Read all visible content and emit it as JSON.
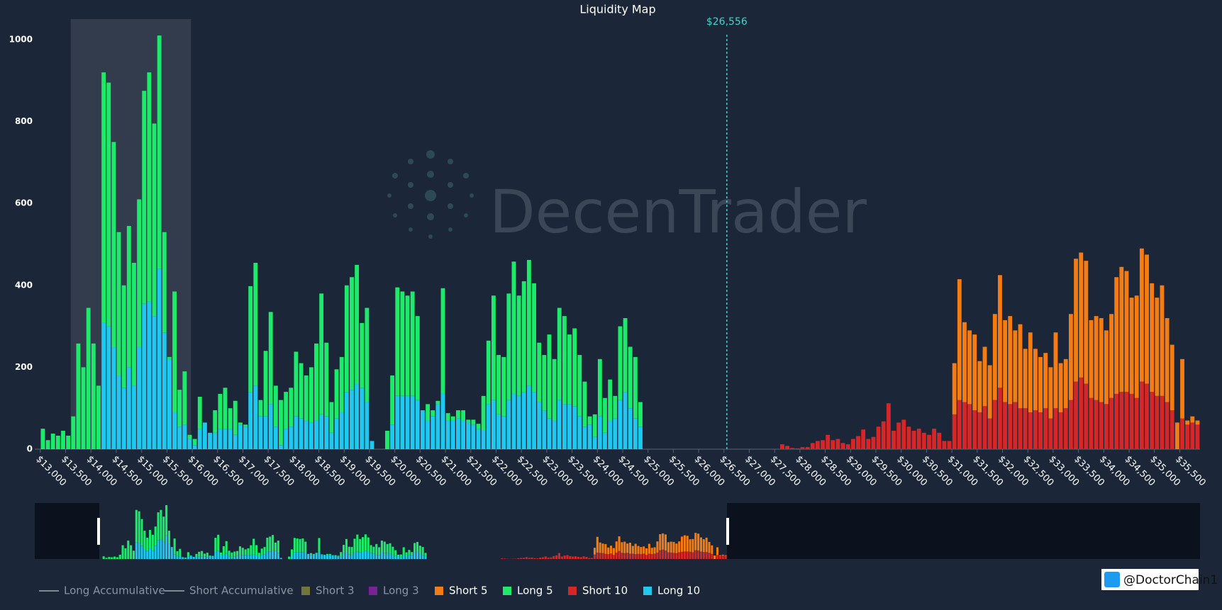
{
  "chart_data": {
    "type": "bar",
    "title": "Liquidity Map",
    "watermark": "DecenTrader",
    "credit": "@DoctorChain1",
    "current_price": {
      "value": 26556,
      "label": "$26,556"
    },
    "highlight_range": [
      13600,
      15975
    ],
    "xlim": [
      12890,
      35900
    ],
    "ylim": [
      0,
      1050
    ],
    "yticks": [
      0,
      200,
      400,
      600,
      800,
      1000
    ],
    "xticks": [
      {
        "value": 13000,
        "label": "$13,000"
      },
      {
        "value": 13500,
        "label": "$13,500"
      },
      {
        "value": 14000,
        "label": "$14,000"
      },
      {
        "value": 14500,
        "label": "$14,500"
      },
      {
        "value": 15000,
        "label": "$15,000"
      },
      {
        "value": 15500,
        "label": "$15,500"
      },
      {
        "value": 16000,
        "label": "$16,000"
      },
      {
        "value": 16500,
        "label": "$16,500"
      },
      {
        "value": 17000,
        "label": "$17,000"
      },
      {
        "value": 17500,
        "label": "$17,500"
      },
      {
        "value": 18000,
        "label": "$18,000"
      },
      {
        "value": 18500,
        "label": "$18,500"
      },
      {
        "value": 19000,
        "label": "$19,000"
      },
      {
        "value": 19500,
        "label": "$19,500"
      },
      {
        "value": 20000,
        "label": "$20,000"
      },
      {
        "value": 20500,
        "label": "$20,500"
      },
      {
        "value": 21000,
        "label": "$21,000"
      },
      {
        "value": 21500,
        "label": "$21,500"
      },
      {
        "value": 22000,
        "label": "$22,000"
      },
      {
        "value": 22500,
        "label": "$22,500"
      },
      {
        "value": 23000,
        "label": "$23,000"
      },
      {
        "value": 23500,
        "label": "$23,500"
      },
      {
        "value": 24000,
        "label": "$24,000"
      },
      {
        "value": 24500,
        "label": "$24,500"
      },
      {
        "value": 25000,
        "label": "$25,000"
      },
      {
        "value": 25500,
        "label": "$25,500"
      },
      {
        "value": 26000,
        "label": "$26,000"
      },
      {
        "value": 26500,
        "label": "$26,500"
      },
      {
        "value": 27000,
        "label": "$27,000"
      },
      {
        "value": 27500,
        "label": "$27,500"
      },
      {
        "value": 28000,
        "label": "$28,000"
      },
      {
        "value": 28500,
        "label": "$28,500"
      },
      {
        "value": 29000,
        "label": "$29,000"
      },
      {
        "value": 29500,
        "label": "$29,500"
      },
      {
        "value": 30000,
        "label": "$30,000"
      },
      {
        "value": 30500,
        "label": "$30,500"
      },
      {
        "value": 31000,
        "label": "$31,000"
      },
      {
        "value": 31500,
        "label": "$31,500"
      },
      {
        "value": 32000,
        "label": "$32,000"
      },
      {
        "value": 32500,
        "label": "$32,500"
      },
      {
        "value": 33000,
        "label": "$33,000"
      },
      {
        "value": 33500,
        "label": "$33,500"
      },
      {
        "value": 34000,
        "label": "$34,000"
      },
      {
        "value": 34500,
        "label": "$34,500"
      },
      {
        "value": 35000,
        "label": "$35,000"
      },
      {
        "value": 35500,
        "label": "$35,500"
      }
    ],
    "inactive_series": [
      {
        "name": "Long Accumulative",
        "color": "#7f8c8d",
        "kind": "line"
      },
      {
        "name": "Short Accumulative",
        "color": "#7f8c8d",
        "kind": "line"
      },
      {
        "name": "Short 3",
        "color": "#8a8a3a",
        "kind": "bar"
      },
      {
        "name": "Long 3",
        "color": "#8e24aa",
        "kind": "bar"
      }
    ],
    "stacks": [
      {
        "x": [
          13050,
          13150,
          13250,
          13350,
          13450,
          13550,
          13650,
          13750,
          13850,
          13950,
          14050,
          14150,
          14250,
          14350,
          14450,
          14550,
          14650,
          14750,
          14850,
          14950,
          15050,
          15150,
          15250,
          15350,
          15450,
          15550,
          15650,
          15750,
          15850,
          15950,
          16050,
          16150,
          16250,
          16350,
          16450,
          16550,
          16650,
          16750,
          16850,
          16950,
          17050,
          17150,
          17250,
          17350,
          17450,
          17550,
          17650,
          17750,
          17850,
          17950,
          18050,
          18150,
          18250,
          18350,
          18450,
          18550,
          18650,
          18750,
          18850,
          18950,
          19050,
          19150,
          19250,
          19350,
          19450,
          19550,
          19650,
          19750,
          19850,
          19950,
          20050,
          20150,
          20250,
          20350,
          20450,
          20550,
          20650,
          20750,
          20850,
          20950,
          21050,
          21150,
          21250,
          21350,
          21450,
          21550,
          21650,
          21750,
          21850,
          21950,
          22050,
          22150,
          22250,
          22350,
          22450,
          22550,
          22650,
          22750,
          22850,
          22950,
          23050,
          23150,
          23250,
          23350,
          23450,
          23550,
          23650,
          23750,
          23850,
          23950,
          24050,
          24150,
          24250,
          24350,
          24450,
          24550,
          24650,
          24750,
          24850
        ],
        "series": [
          {
            "name": "Long 10",
            "color": "#1ec8f0",
            "values": [
              0,
              0,
              0,
              0,
              0,
              0,
              0,
              0,
              0,
              0,
              0,
              0,
              308,
              300,
              250,
              180,
              150,
              200,
              155,
              250,
              355,
              360,
              325,
              440,
              285,
              220,
              90,
              55,
              60,
              25,
              10,
              50,
              65,
              40,
              40,
              50,
              50,
              50,
              35,
              60,
              55,
              140,
              155,
              80,
              80,
              110,
              55,
              10,
              50,
              55,
              80,
              75,
              70,
              65,
              70,
              85,
              80,
              40,
              75,
              90,
              140,
              145,
              160,
              150,
              115,
              20,
              0,
              0,
              0,
              60,
              130,
              130,
              130,
              130,
              120,
              95,
              70,
              80,
              110,
              135,
              70,
              70,
              75,
              70,
              65,
              60,
              50,
              45,
              110,
              120,
              85,
              80,
              120,
              135,
              130,
              140,
              155,
              140,
              115,
              95,
              75,
              70,
              120,
              110,
              110,
              105,
              80,
              55,
              60,
              30,
              80,
              40,
              70,
              75,
              120,
              140,
              100,
              75,
              55
            ]
          },
          {
            "name": "Long 5",
            "color": "#1de96b",
            "values": [
              50,
              22,
              38,
              33,
              45,
              33,
              80,
              258,
              200,
              345,
              258,
              155,
              612,
              595,
              500,
              350,
              250,
              345,
              300,
              360,
              520,
              560,
              470,
              570,
              245,
              5,
              295,
              90,
              130,
              10,
              15,
              78,
              0,
              0,
              55,
              85,
              100,
              50,
              83,
              5,
              5,
              258,
              300,
              40,
              160,
              225,
              100,
              110,
              90,
              95,
              158,
              135,
              110,
              135,
              188,
              295,
              180,
              75,
              120,
              135,
              260,
              275,
              290,
              158,
              230,
              0,
              0,
              0,
              45,
              120,
              265,
              255,
              245,
              255,
              205,
              0,
              40,
              15,
              8,
              258,
              18,
              10,
              20,
              25,
              7,
              12,
              12,
              85,
              155,
              255,
              145,
              145,
              260,
              323,
              245,
              270,
              307,
              265,
              145,
              135,
              205,
              150,
              225,
              215,
              170,
              190,
              150,
              110,
              20,
              55,
              140,
              85,
              100,
              55,
              180,
              180,
              150,
              150,
              60
            ]
          }
        ]
      },
      {
        "x": [
          27650,
          27750,
          27850,
          27950,
          28050,
          28150,
          28250,
          28350,
          28450,
          28550,
          28650,
          28750,
          28850,
          28950,
          29050,
          29150,
          29250,
          29350,
          29450,
          29550,
          29650,
          29750,
          29850,
          29950,
          30050,
          30150,
          30250,
          30350,
          30450,
          30550,
          30650,
          30750,
          30850,
          30950,
          31050,
          31150,
          31250,
          31350,
          31450,
          31550,
          31650,
          31750,
          31850,
          31950,
          32050,
          32150,
          32250,
          32350,
          32450,
          32550,
          32650,
          32750,
          32850,
          32950,
          33050,
          33150,
          33250,
          33350,
          33450,
          33550,
          33650,
          33750,
          33850,
          33950,
          34050,
          34150,
          34250,
          34350,
          34450,
          34550,
          34650,
          34750,
          34850,
          34950,
          35050,
          35150,
          35250,
          35350,
          35450,
          35550,
          35650,
          35750,
          35850
        ],
        "series": [
          {
            "name": "Short 10",
            "color": "#d62728",
            "values": [
              12,
              8,
              3,
              2,
              5,
              5,
              15,
              20,
              22,
              35,
              22,
              25,
              15,
              12,
              25,
              32,
              48,
              25,
              30,
              55,
              68,
              112,
              45,
              65,
              72,
              55,
              45,
              50,
              40,
              35,
              50,
              40,
              20,
              20,
              85,
              120,
              115,
              110,
              95,
              90,
              105,
              75,
              120,
              150,
              115,
              110,
              115,
              100,
              100,
              90,
              95,
              90,
              100,
              75,
              100,
              90,
              100,
              120,
              165,
              175,
              160,
              125,
              120,
              115,
              110,
              125,
              135,
              140,
              140,
              135,
              125,
              165,
              160,
              140,
              130,
              130,
              115,
              95,
              0,
              75,
              60,
              65,
              60
            ]
          },
          {
            "name": "Short 5",
            "color": "#f57c12",
            "values": [
              0,
              0,
              0,
              0,
              0,
              0,
              0,
              0,
              0,
              0,
              0,
              0,
              0,
              0,
              0,
              0,
              0,
              0,
              0,
              0,
              0,
              0,
              0,
              0,
              0,
              0,
              0,
              0,
              0,
              0,
              0,
              0,
              0,
              0,
              125,
              295,
              195,
              180,
              185,
              125,
              145,
              130,
              210,
              275,
              200,
              215,
              175,
              205,
              145,
              195,
              150,
              135,
              135,
              125,
              185,
              120,
              120,
              210,
              300,
              305,
              300,
              190,
              205,
              205,
              180,
              205,
              285,
              305,
              295,
              235,
              250,
              325,
              315,
              265,
              240,
              270,
              205,
              160,
              65,
              145,
              10,
              15,
              10
            ]
          }
        ]
      }
    ]
  }
}
